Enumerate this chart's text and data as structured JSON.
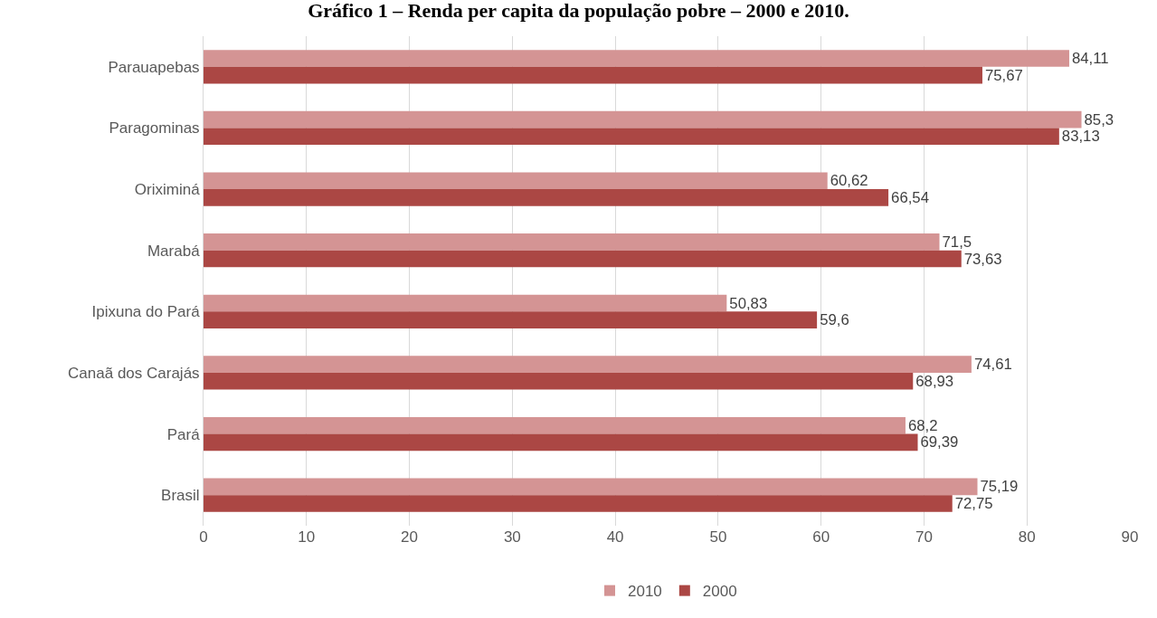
{
  "chart_data": {
    "type": "bar",
    "orientation": "horizontal",
    "title": "Gráfico 1 – Renda per capita da população pobre – 2000 e 2010.",
    "categories": [
      "Parauapebas",
      "Paragominas",
      "Oriximiná",
      "Marabá",
      "Ipixuna do Pará",
      "Canaã dos Carajás",
      "Pará",
      "Brasil"
    ],
    "series": [
      {
        "name": "2010",
        "color": "#d49494",
        "values": [
          84.11,
          85.3,
          60.62,
          71.5,
          50.83,
          74.61,
          68.2,
          75.19
        ],
        "value_labels": [
          "84,11",
          "85,3",
          "60,62",
          "71,5",
          "50,83",
          "74,61",
          "68,2",
          "75,19"
        ]
      },
      {
        "name": "2000",
        "color": "#ab4744",
        "values": [
          75.67,
          83.13,
          66.54,
          73.63,
          59.6,
          68.93,
          69.39,
          72.75
        ],
        "value_labels": [
          "75,67",
          "83,13",
          "66,54",
          "73,63",
          "59,6",
          "68,93",
          "69,39",
          "72,75"
        ]
      }
    ],
    "xlim": [
      0,
      90
    ],
    "xticks": [
      0,
      10,
      20,
      30,
      40,
      50,
      60,
      70,
      80,
      90
    ],
    "grid": "x",
    "legend": "bottom"
  }
}
